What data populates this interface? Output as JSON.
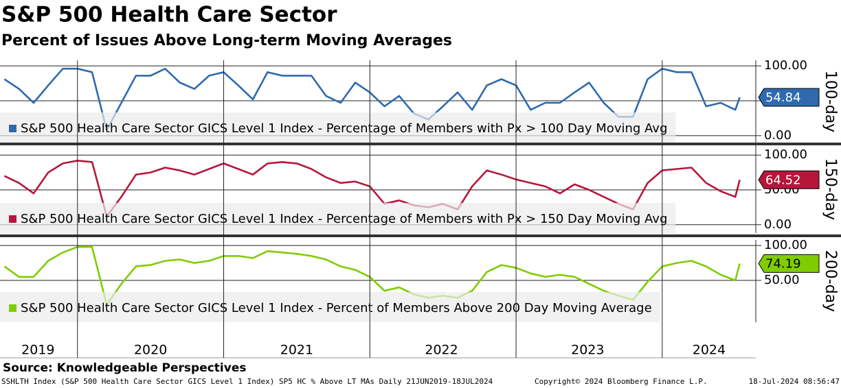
{
  "header": {
    "title": "S&P 500 Health Care Sector",
    "subtitle": "Percent of Issues Above Long-term Moving Averages"
  },
  "footer": {
    "source": "Source: Knowledgeable Perspectives",
    "description": "SSHLTH Index (S&P 500 Health Care Sector GICS Level 1 Index) SP5 HC % Above LT MAs  Daily 21JUN2019-18JUL2024",
    "copyright": "Copyright© 2024 Bloomberg Finance L.P.",
    "timestamp": "18-Jul-2024 08:56:47"
  },
  "chart_data": [
    {
      "type": "line",
      "panel_label": "100-day",
      "xlim": [
        2019.47,
        2024.64
      ],
      "ylim": [
        -10,
        108
      ],
      "yticks": [
        {
          "value": 0,
          "label": "0.00"
        },
        {
          "value": 50,
          "label": "50.00"
        },
        {
          "value": 100,
          "label": "100.00"
        }
      ],
      "x": [
        2019.5,
        2019.6,
        2019.7,
        2019.8,
        2019.9,
        2020.0,
        2020.1,
        2020.2,
        2020.3,
        2020.4,
        2020.5,
        2020.6,
        2020.7,
        2020.8,
        2020.9,
        2021.0,
        2021.1,
        2021.2,
        2021.3,
        2021.4,
        2021.5,
        2021.6,
        2021.7,
        2021.8,
        2021.9,
        2022.0,
        2022.1,
        2022.2,
        2022.3,
        2022.4,
        2022.5,
        2022.6,
        2022.7,
        2022.8,
        2022.9,
        2023.0,
        2023.1,
        2023.2,
        2023.3,
        2023.4,
        2023.5,
        2023.6,
        2023.7,
        2023.8,
        2023.9,
        2024.0,
        2024.1,
        2024.2,
        2024.3,
        2024.4,
        2024.5,
        2024.53
      ],
      "series": [
        {
          "name": "S&P 500 Health Care Sector GICS Level 1 Index - Percentage of Members with Px > 100 Day Moving Avg",
          "color": "#2e6aad",
          "values": [
            81,
            67,
            47,
            72,
            96,
            96,
            91,
            8,
            47,
            86,
            86,
            96,
            76,
            67,
            86,
            91,
            72,
            52,
            91,
            86,
            86,
            86,
            57,
            47,
            76,
            62,
            42,
            57,
            32,
            23,
            42,
            62,
            37,
            72,
            81,
            72,
            37,
            47,
            47,
            62,
            76,
            47,
            27,
            27,
            81,
            96,
            91,
            91,
            42,
            47,
            37,
            54.84
          ]
        }
      ]
    },
    {
      "type": "line",
      "panel_label": "150-day",
      "xlim": [
        2019.47,
        2024.64
      ],
      "ylim": [
        -12,
        114
      ],
      "yticks": [
        {
          "value": 0,
          "label": "0.00"
        },
        {
          "value": 50,
          "label": "50.00"
        },
        {
          "value": 100,
          "label": "100.00"
        }
      ],
      "x": [
        2019.5,
        2019.6,
        2019.7,
        2019.8,
        2019.9,
        2020.0,
        2020.1,
        2020.2,
        2020.3,
        2020.4,
        2020.5,
        2020.6,
        2020.7,
        2020.8,
        2020.9,
        2021.0,
        2021.1,
        2021.2,
        2021.3,
        2021.4,
        2021.5,
        2021.6,
        2021.7,
        2021.8,
        2021.9,
        2022.0,
        2022.1,
        2022.2,
        2022.3,
        2022.4,
        2022.5,
        2022.6,
        2022.7,
        2022.8,
        2022.9,
        2023.0,
        2023.1,
        2023.2,
        2023.3,
        2023.4,
        2023.5,
        2023.6,
        2023.7,
        2023.8,
        2023.9,
        2024.0,
        2024.1,
        2024.2,
        2024.3,
        2024.4,
        2024.5,
        2024.53
      ],
      "series": [
        {
          "name": "S&P 500 Health Care Sector GICS Level 1 Index - Percentage of Members with Px > 150 Day Moving Avg",
          "color": "#b5173a",
          "values": [
            70,
            60,
            45,
            75,
            88,
            92,
            90,
            12,
            40,
            72,
            75,
            82,
            78,
            72,
            80,
            88,
            80,
            72,
            88,
            90,
            88,
            80,
            68,
            60,
            62,
            55,
            30,
            35,
            28,
            25,
            30,
            22,
            55,
            78,
            72,
            65,
            60,
            55,
            45,
            58,
            50,
            40,
            30,
            22,
            60,
            78,
            80,
            82,
            60,
            48,
            40,
            64.52
          ]
        }
      ]
    },
    {
      "type": "line",
      "panel_label": "200-day",
      "xlim": [
        2019.47,
        2024.64
      ],
      "ylim": [
        -10,
        108
      ],
      "yticks": [
        {
          "value": 50,
          "label": "50.00"
        },
        {
          "value": 100,
          "label": "100.00"
        }
      ],
      "xticks": [
        {
          "value": 2019.73,
          "label": "2019"
        },
        {
          "value": 2020.5,
          "label": "2020"
        },
        {
          "value": 2021.5,
          "label": "2021"
        },
        {
          "value": 2022.49,
          "label": "2022"
        },
        {
          "value": 2023.49,
          "label": "2023"
        },
        {
          "value": 2024.32,
          "label": "2024"
        }
      ],
      "xgrid": [
        2020,
        2021,
        2022,
        2023,
        2024
      ],
      "x": [
        2019.5,
        2019.6,
        2019.7,
        2019.8,
        2019.9,
        2020.0,
        2020.1,
        2020.2,
        2020.3,
        2020.4,
        2020.5,
        2020.6,
        2020.7,
        2020.8,
        2020.9,
        2021.0,
        2021.1,
        2021.2,
        2021.3,
        2021.4,
        2021.5,
        2021.6,
        2021.7,
        2021.8,
        2021.9,
        2022.0,
        2022.1,
        2022.2,
        2022.3,
        2022.4,
        2022.5,
        2022.6,
        2022.7,
        2022.8,
        2022.9,
        2023.0,
        2023.1,
        2023.2,
        2023.3,
        2023.4,
        2023.5,
        2023.6,
        2023.7,
        2023.8,
        2023.9,
        2024.0,
        2024.1,
        2024.2,
        2024.3,
        2024.4,
        2024.5,
        2024.53
      ],
      "series": [
        {
          "name": "S&P 500 Health Care Sector GICS Level 1 Index - Percent of Members Above 200 Day Moving Average",
          "color": "#7fcc00",
          "values": [
            70,
            55,
            55,
            78,
            90,
            98,
            98,
            15,
            45,
            70,
            72,
            78,
            80,
            75,
            78,
            85,
            85,
            82,
            92,
            90,
            88,
            85,
            80,
            70,
            65,
            55,
            35,
            40,
            30,
            25,
            28,
            25,
            35,
            62,
            72,
            68,
            60,
            55,
            58,
            55,
            45,
            35,
            28,
            22,
            48,
            70,
            75,
            78,
            70,
            58,
            50,
            74.19
          ]
        }
      ]
    }
  ]
}
